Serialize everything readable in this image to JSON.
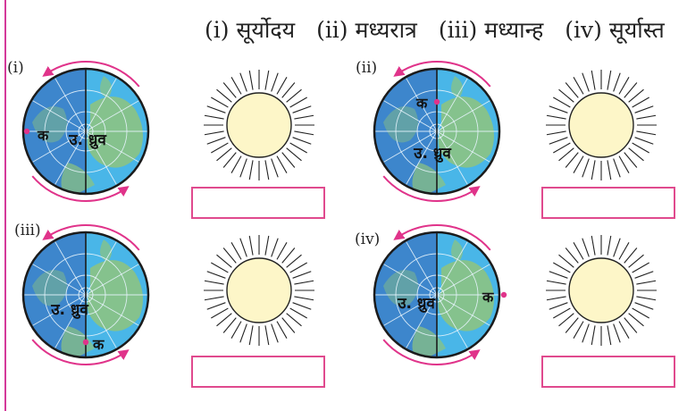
{
  "legend": {
    "items": [
      "(i) सूर्योदय",
      "(ii) मध्यरात्र",
      "(iii) मध्यान्ह",
      "(iv) सूर्यास्त"
    ]
  },
  "panels": [
    {
      "label": "(i)",
      "pole_label": "उ. ध्रुव",
      "point_label": "क"
    },
    {
      "label": "(ii)",
      "pole_label": "उ. ध्रुव",
      "point_label": "क"
    },
    {
      "label": "(iii)",
      "pole_label": "उ. ध्रुव",
      "point_label": "क"
    },
    {
      "label": "(iv)",
      "pole_label": "उ. ध्रुव",
      "point_label": "क"
    }
  ],
  "colors": {
    "day_side": "#49b6e8",
    "night_side": "#3d86cc",
    "land": "#8fc47d",
    "arrow": "#e0338a",
    "sun_fill": "#fdf6c8",
    "box_border": "#e04a8e"
  }
}
